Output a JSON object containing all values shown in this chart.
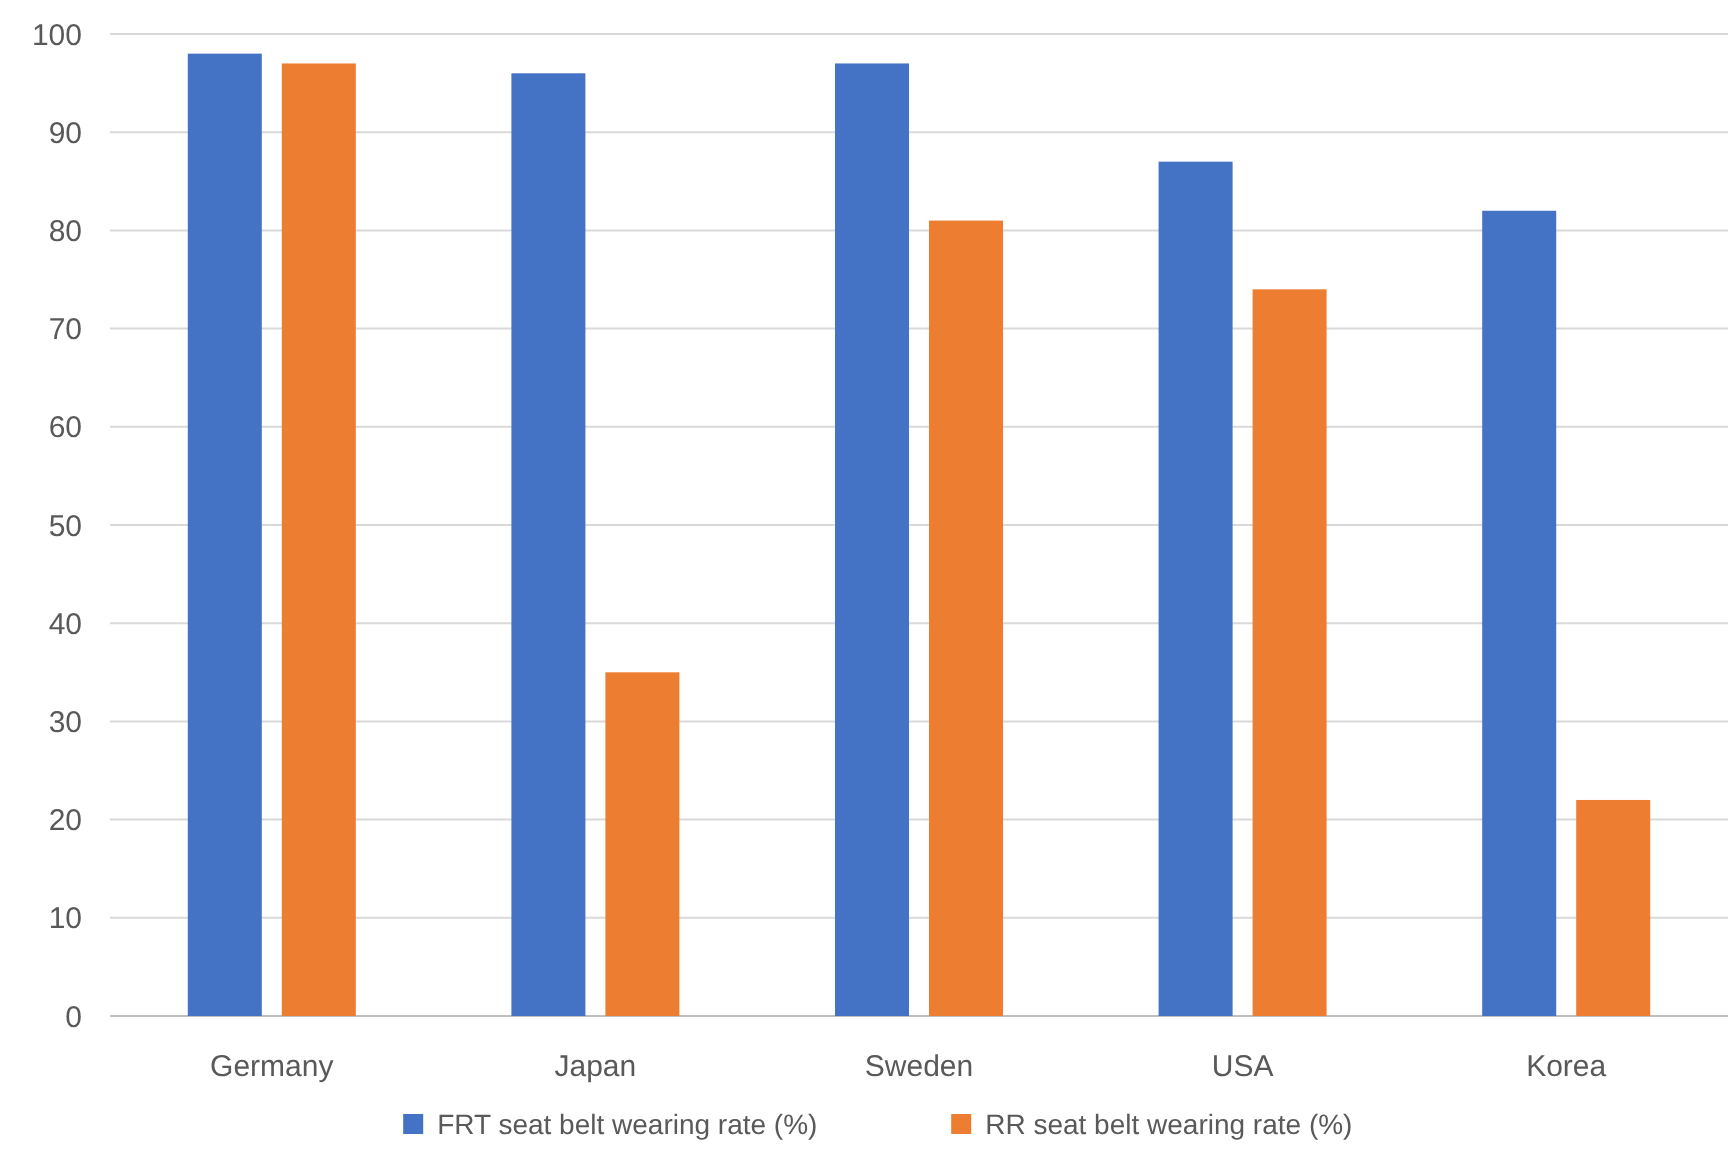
{
  "chart_data": {
    "type": "bar",
    "categories": [
      "Germany",
      "Japan",
      "Sweden",
      "USA",
      "Korea"
    ],
    "series": [
      {
        "name": "FRT seat belt wearing rate (%)",
        "color": "#4472c4",
        "values": [
          98,
          96,
          97,
          87,
          82
        ]
      },
      {
        "name": "RR seat belt wearing rate (%)",
        "color": "#ed7d31",
        "values": [
          97,
          35,
          81,
          74,
          22
        ]
      }
    ],
    "ylim": [
      0,
      100
    ],
    "yticks": [
      0,
      10,
      20,
      30,
      40,
      50,
      60,
      70,
      80,
      90,
      100
    ],
    "grid": "y",
    "legend": "bottom"
  }
}
